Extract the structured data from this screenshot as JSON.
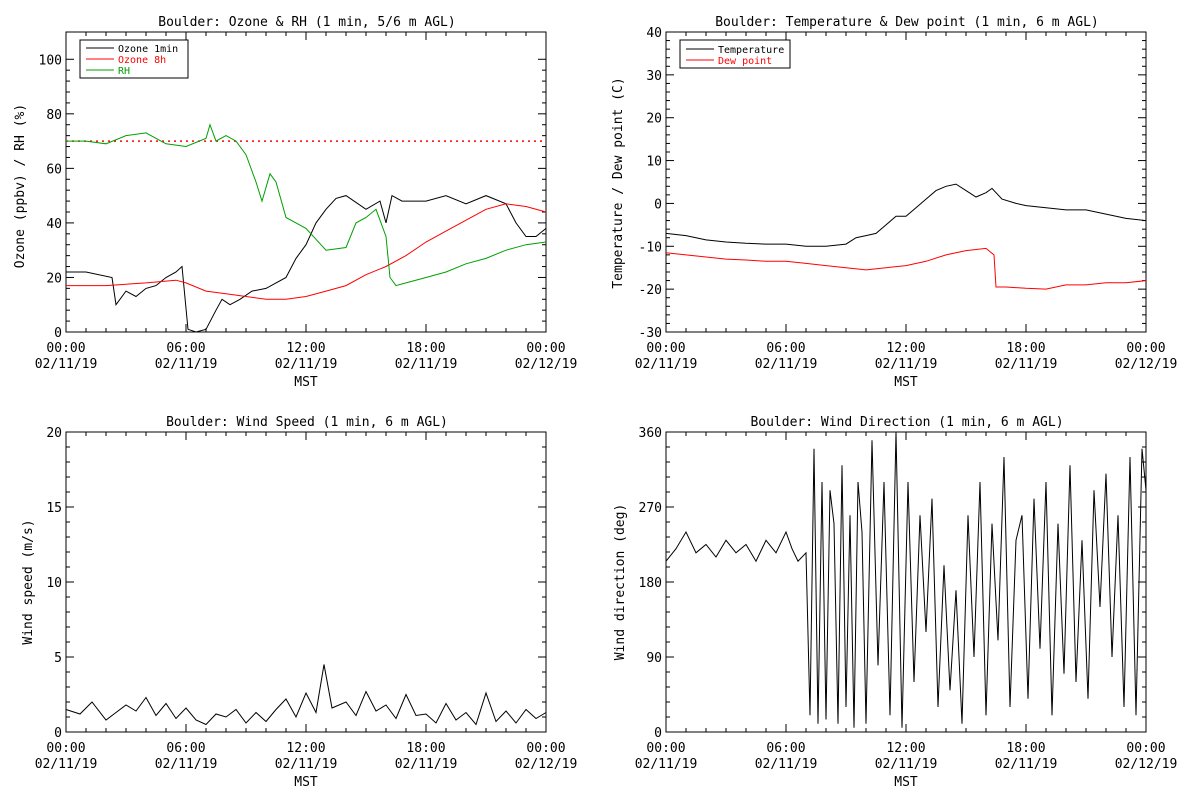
{
  "chart_data": [
    {
      "type": "line",
      "title": "Boulder: Ozone & RH (1 min, 5/6 m AGL)",
      "xlabel": "MST",
      "ylabel": "Ozone (ppbv) / RH (%)",
      "ylim": [
        0,
        110
      ],
      "yticks": [
        0,
        20,
        40,
        60,
        80,
        100
      ],
      "xlim_hours": [
        0,
        24
      ],
      "xticks": [
        {
          "h": 0,
          "l1": "00:00",
          "l2": "02/11/19"
        },
        {
          "h": 6,
          "l1": "06:00",
          "l2": "02/11/19"
        },
        {
          "h": 12,
          "l1": "12:00",
          "l2": "02/11/19"
        },
        {
          "h": 18,
          "l1": "18:00",
          "l2": "02/11/19"
        },
        {
          "h": 24,
          "l1": "00:00",
          "l2": "02/12/19"
        }
      ],
      "legend_position": "top-left",
      "reference_line": {
        "y": 70,
        "color": "#ff0000",
        "style": "dotted"
      },
      "series": [
        {
          "name": "Ozone 1min",
          "color": "#000000",
          "x": [
            0,
            1,
            2.3,
            2.5,
            3,
            3.5,
            4,
            4.5,
            5,
            5.5,
            5.8,
            6.1,
            6.5,
            7,
            7.5,
            7.8,
            8.2,
            8.7,
            9.3,
            10,
            11,
            11.5,
            12,
            12.5,
            13,
            13.5,
            14,
            15,
            15.7,
            16,
            16.3,
            16.8,
            17.5,
            18,
            19,
            20,
            21,
            22,
            22.5,
            23,
            23.5,
            24
          ],
          "y": [
            22,
            22,
            20,
            10,
            15,
            13,
            16,
            17,
            20,
            22,
            24,
            1,
            0,
            1,
            8,
            12,
            10,
            12,
            15,
            16,
            20,
            27,
            32,
            40,
            45,
            49,
            50,
            45,
            48,
            40,
            50,
            48,
            48,
            48,
            50,
            47,
            50,
            47,
            40,
            35,
            35,
            38
          ]
        },
        {
          "name": "Ozone 8h",
          "color": "#ff0000",
          "x": [
            0,
            2,
            4,
            5.5,
            6,
            7,
            8,
            9,
            10,
            11,
            12,
            13,
            14,
            15,
            16,
            17,
            18,
            19,
            20,
            21,
            22,
            23,
            24
          ],
          "y": [
            17,
            17,
            18,
            19,
            18,
            15,
            14,
            13,
            12,
            12,
            13,
            15,
            17,
            21,
            24,
            28,
            33,
            37,
            41,
            45,
            47,
            46,
            44
          ]
        },
        {
          "name": "RH",
          "color": "#00a000",
          "x": [
            0,
            1,
            2,
            3,
            4,
            5,
            6,
            7,
            7.2,
            7.5,
            8,
            8.5,
            9,
            9.5,
            9.8,
            10.2,
            10.5,
            11,
            11.5,
            12,
            12.5,
            13,
            14,
            14.5,
            15,
            15.5,
            16,
            16.2,
            16.5,
            17,
            18,
            19,
            20,
            21,
            22,
            23,
            24
          ],
          "y": [
            70,
            70,
            69,
            72,
            73,
            69,
            68,
            71,
            76,
            70,
            72,
            70,
            65,
            55,
            48,
            58,
            55,
            42,
            40,
            38,
            34,
            30,
            31,
            40,
            42,
            45,
            35,
            20,
            17,
            18,
            20,
            22,
            25,
            27,
            30,
            32,
            33
          ]
        }
      ]
    },
    {
      "type": "line",
      "title": "Boulder: Temperature & Dew point (1 min, 6 m AGL)",
      "xlabel": "MST",
      "ylabel": "Temperature / Dew point (C)",
      "ylim": [
        -30,
        40
      ],
      "yticks": [
        -30,
        -20,
        -10,
        0,
        10,
        20,
        30,
        40
      ],
      "xlim_hours": [
        0,
        24
      ],
      "xticks": [
        {
          "h": 0,
          "l1": "00:00",
          "l2": "02/11/19"
        },
        {
          "h": 6,
          "l1": "06:00",
          "l2": "02/11/19"
        },
        {
          "h": 12,
          "l1": "12:00",
          "l2": "02/11/19"
        },
        {
          "h": 18,
          "l1": "18:00",
          "l2": "02/11/19"
        },
        {
          "h": 24,
          "l1": "00:00",
          "l2": "02/12/19"
        }
      ],
      "legend_position": "top-left",
      "series": [
        {
          "name": "Temperature",
          "color": "#000000",
          "x": [
            0,
            1,
            2,
            3,
            4,
            5,
            6,
            7,
            8,
            9,
            9.5,
            10,
            10.5,
            11,
            11.5,
            12,
            12.5,
            13,
            13.5,
            14,
            14.5,
            15,
            15.5,
            16,
            16.3,
            16.8,
            17.5,
            18,
            19,
            20,
            21,
            22,
            23,
            24
          ],
          "y": [
            -7,
            -7.5,
            -8.5,
            -9,
            -9.3,
            -9.5,
            -9.5,
            -10,
            -10,
            -9.5,
            -8,
            -7.5,
            -7,
            -5,
            -3,
            -3,
            -1,
            1,
            3,
            4,
            4.5,
            3,
            1.5,
            2.5,
            3.5,
            1,
            0,
            -0.5,
            -1,
            -1.5,
            -1.5,
            -2.5,
            -3.5,
            -4
          ]
        },
        {
          "name": "Dew point",
          "color": "#ff0000",
          "x": [
            0,
            1,
            2,
            3,
            4,
            5,
            6,
            7,
            8,
            9,
            10,
            11,
            12,
            13,
            14,
            15,
            16,
            16.4,
            16.5,
            17,
            18,
            19,
            20,
            21,
            22,
            23,
            24
          ],
          "y": [
            -11.5,
            -12,
            -12.5,
            -13,
            -13.2,
            -13.5,
            -13.5,
            -14,
            -14.5,
            -15,
            -15.5,
            -15,
            -14.5,
            -13.5,
            -12,
            -11,
            -10.5,
            -12,
            -19.5,
            -19.5,
            -19.8,
            -20,
            -19,
            -19,
            -18.5,
            -18.5,
            -18
          ]
        }
      ]
    },
    {
      "type": "line",
      "title": "Boulder: Wind Speed (1 min, 6 m AGL)",
      "xlabel": "MST",
      "ylabel": "Wind speed (m/s)",
      "ylim": [
        0,
        20
      ],
      "yticks": [
        0,
        5,
        10,
        15,
        20
      ],
      "xlim_hours": [
        0,
        24
      ],
      "xticks": [
        {
          "h": 0,
          "l1": "00:00",
          "l2": "02/11/19"
        },
        {
          "h": 6,
          "l1": "06:00",
          "l2": "02/11/19"
        },
        {
          "h": 12,
          "l1": "12:00",
          "l2": "02/11/19"
        },
        {
          "h": 18,
          "l1": "18:00",
          "l2": "02/11/19"
        },
        {
          "h": 24,
          "l1": "00:00",
          "l2": "02/12/19"
        }
      ],
      "series": [
        {
          "name": "",
          "color": "#000000",
          "x": [
            0,
            0.7,
            1.3,
            2,
            2.5,
            3,
            3.5,
            4,
            4.5,
            5,
            5.5,
            6,
            6.5,
            7,
            7.5,
            8,
            8.5,
            9,
            9.5,
            10,
            10.5,
            11,
            11.5,
            12,
            12.5,
            12.9,
            13.3,
            14,
            14.5,
            15,
            15.5,
            16,
            16.5,
            17,
            17.5,
            18,
            18.5,
            19,
            19.5,
            20,
            20.5,
            21,
            21.5,
            22,
            22.5,
            23,
            23.5,
            24
          ],
          "y": [
            1.5,
            1.2,
            2,
            0.8,
            1.3,
            1.8,
            1.4,
            2.3,
            1.1,
            1.9,
            0.9,
            1.6,
            0.8,
            0.5,
            1.2,
            1.0,
            1.5,
            0.6,
            1.3,
            0.7,
            1.5,
            2.2,
            1.0,
            2.6,
            1.3,
            4.5,
            1.6,
            2.0,
            1.1,
            2.7,
            1.4,
            1.8,
            0.9,
            2.5,
            1.1,
            1.2,
            0.6,
            1.9,
            0.8,
            1.3,
            0.5,
            2.6,
            0.7,
            1.4,
            0.6,
            1.5,
            0.9,
            1.3
          ]
        }
      ]
    },
    {
      "type": "line",
      "title": "Boulder: Wind Direction (1 min, 6 m AGL)",
      "xlabel": "MST",
      "ylabel": "Wind direction (deg)",
      "ylim": [
        0,
        360
      ],
      "yticks": [
        0,
        90,
        180,
        270,
        360
      ],
      "xlim_hours": [
        0,
        24
      ],
      "xticks": [
        {
          "h": 0,
          "l1": "00:00",
          "l2": "02/11/19"
        },
        {
          "h": 6,
          "l1": "06:00",
          "l2": "02/11/19"
        },
        {
          "h": 12,
          "l1": "12:00",
          "l2": "02/11/19"
        },
        {
          "h": 18,
          "l1": "18:00",
          "l2": "02/11/19"
        },
        {
          "h": 24,
          "l1": "00:00",
          "l2": "02/12/19"
        }
      ],
      "series": [
        {
          "name": "",
          "color": "#000000",
          "x": [
            0,
            0.5,
            1,
            1.5,
            2,
            2.5,
            3,
            3.5,
            4,
            4.5,
            5,
            5.5,
            6,
            6.3,
            6.6,
            7,
            7.2,
            7.4,
            7.6,
            7.8,
            8,
            8.2,
            8.4,
            8.6,
            8.8,
            9,
            9.2,
            9.4,
            9.6,
            9.8,
            10,
            10.3,
            10.6,
            10.9,
            11.2,
            11.5,
            11.8,
            12.1,
            12.4,
            12.7,
            13,
            13.3,
            13.6,
            13.9,
            14.2,
            14.5,
            14.8,
            15.1,
            15.4,
            15.7,
            16,
            16.3,
            16.6,
            16.9,
            17.2,
            17.5,
            17.8,
            18.1,
            18.4,
            18.7,
            19,
            19.3,
            19.6,
            19.9,
            20.2,
            20.5,
            20.8,
            21.1,
            21.4,
            21.7,
            22,
            22.3,
            22.6,
            22.9,
            23.2,
            23.5,
            23.8,
            24
          ],
          "y": [
            205,
            220,
            240,
            215,
            225,
            210,
            230,
            215,
            225,
            205,
            230,
            215,
            240,
            220,
            205,
            215,
            20,
            340,
            10,
            300,
            15,
            290,
            250,
            10,
            320,
            30,
            260,
            5,
            300,
            240,
            10,
            350,
            80,
            300,
            20,
            360,
            5,
            300,
            60,
            260,
            120,
            280,
            30,
            200,
            50,
            170,
            10,
            260,
            90,
            300,
            20,
            250,
            110,
            330,
            30,
            230,
            260,
            40,
            280,
            100,
            300,
            20,
            250,
            70,
            320,
            60,
            230,
            40,
            290,
            150,
            310,
            90,
            260,
            30,
            330,
            20,
            340,
            290
          ]
        }
      ]
    }
  ]
}
